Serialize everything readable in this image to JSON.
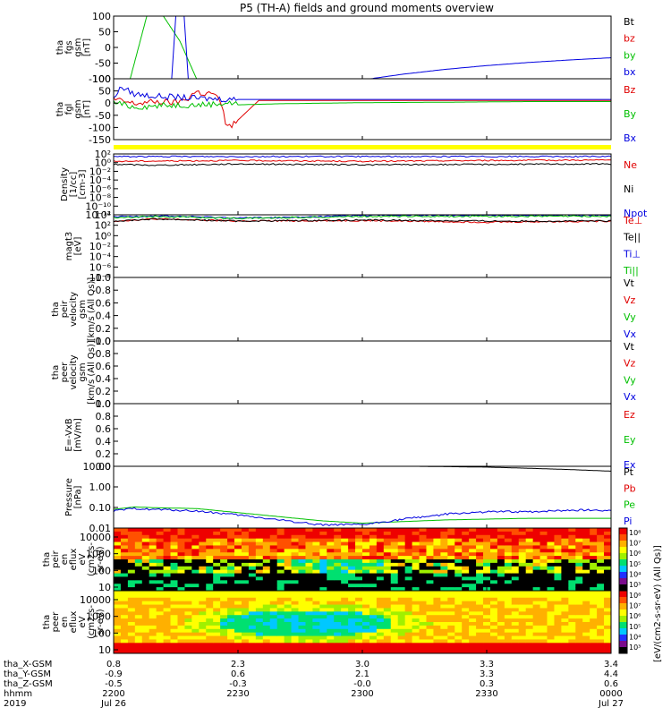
{
  "title": "P5 (TH-A) fields and ground moments overview",
  "colors": {
    "black": "#000000",
    "red": "#e00000",
    "green": "#00c000",
    "blue": "#0000e0",
    "yellow": "#ffff00"
  },
  "panels": [
    {
      "id": "fgs",
      "ylabel": [
        "tha",
        "fgs",
        "gsm",
        "[nT]"
      ],
      "ticks": [
        "100",
        "50",
        "0",
        "-50",
        "-100"
      ],
      "legend": [
        {
          "text": "Bt",
          "color": "black"
        },
        {
          "text": "bz",
          "color": "red"
        },
        {
          "text": "by",
          "color": "green"
        },
        {
          "text": "bx",
          "color": "blue"
        }
      ]
    },
    {
      "id": "fgl",
      "ylabel": [
        "tha",
        "fgl",
        "gsm",
        "[nT]"
      ],
      "ticks": [
        "100",
        "50",
        "0",
        "-50",
        "-100",
        "-150"
      ],
      "legend": [
        {
          "text": "Bz",
          "color": "red"
        },
        {
          "text": "By",
          "color": "green"
        },
        {
          "text": "Bx",
          "color": "blue"
        }
      ]
    },
    {
      "id": "density",
      "ylabel": [
        "Density",
        "[1/cc]",
        "[cm-3]"
      ],
      "ticks": [
        "10²",
        "10⁰",
        "10⁻²",
        "10⁻⁴",
        "10⁻⁶",
        "10⁻⁸",
        "10⁻¹⁰",
        "10⁻¹²"
      ],
      "legend": [
        {
          "text": "Ne",
          "color": "red"
        },
        {
          "text": "Ni",
          "color": "black"
        },
        {
          "text": "Npot",
          "color": "blue"
        }
      ]
    },
    {
      "id": "temp",
      "ylabel": [
        "magt3",
        "[eV]"
      ],
      "ticks": [
        "10⁴",
        "10²",
        "10⁰",
        "10⁻²",
        "10⁻⁴",
        "10⁻⁶",
        "10⁻⁸"
      ],
      "legend": [
        {
          "text": "Te⊥",
          "color": "red"
        },
        {
          "text": "Te||",
          "color": "black"
        },
        {
          "text": "Ti⊥",
          "color": "blue"
        },
        {
          "text": "Ti||",
          "color": "green"
        }
      ]
    },
    {
      "id": "peir_vel",
      "ylabel": [
        "tha",
        "peir",
        "velocity",
        "gsm",
        "[km/s (All Qs)]"
      ],
      "ticks": [
        "1.0",
        "0.8",
        "0.6",
        "0.4",
        "0.2",
        "0.0"
      ],
      "legend": [
        {
          "text": "Vt",
          "color": "black"
        },
        {
          "text": "Vz",
          "color": "red"
        },
        {
          "text": "Vy",
          "color": "green"
        },
        {
          "text": "Vx",
          "color": "blue"
        }
      ]
    },
    {
      "id": "peer_vel",
      "ylabel": [
        "tha",
        "peer",
        "velocity",
        "gsm",
        "[km/s (All Qs)]"
      ],
      "ticks": [
        "1.0",
        "0.8",
        "0.6",
        "0.4",
        "0.2",
        "0.0"
      ],
      "legend": [
        {
          "text": "Vt",
          "color": "black"
        },
        {
          "text": "Vz",
          "color": "red"
        },
        {
          "text": "Vy",
          "color": "green"
        },
        {
          "text": "Vx",
          "color": "blue"
        }
      ]
    },
    {
      "id": "efield",
      "ylabel": [
        "E=-VxB",
        "[mV/m]"
      ],
      "ticks": [
        "1.0",
        "0.8",
        "0.6",
        "0.4",
        "0.2",
        "0.0"
      ],
      "legend": [
        {
          "text": "Ez",
          "color": "red"
        },
        {
          "text": "Ey",
          "color": "green"
        },
        {
          "text": "Ex",
          "color": "blue"
        }
      ]
    },
    {
      "id": "pressure",
      "ylabel": [
        "Pressure",
        "[nPa]"
      ],
      "ticks": [
        "10.00",
        "1.00",
        "0.10",
        "0.01"
      ],
      "legend": [
        {
          "text": "Pt",
          "color": "black"
        },
        {
          "text": "Pb",
          "color": "red"
        },
        {
          "text": "Pe",
          "color": "green"
        },
        {
          "text": "Pi",
          "color": "blue"
        }
      ]
    },
    {
      "id": "peir_spec",
      "ylabel": [
        "tha",
        "peir",
        "en",
        "eflux",
        "eV",
        "(cm2-s-",
        "sr-eV)"
      ],
      "ticks": [
        "10000",
        "1000",
        "100",
        "10"
      ],
      "colorbar_ticks": [
        "10⁸",
        "10⁷",
        "10⁶",
        "10⁵",
        "10⁴",
        "10³"
      ],
      "colorbar_label": "[eV/(cm2-s-sr-eV) (All Qs)]"
    },
    {
      "id": "peer_spec",
      "ylabel": [
        "tha",
        "peer",
        "en",
        "eflux",
        "eV",
        "(cm2-s-",
        "sr-eV)"
      ],
      "ticks": [
        "10000",
        "1000",
        "100",
        "10"
      ],
      "colorbar_ticks": [
        "10⁸",
        "10⁷",
        "10⁶",
        "10⁵",
        "10⁴",
        "10³"
      ],
      "colorbar_label": "[eV/(cm2-s-sr-eV)]"
    }
  ],
  "xaxis": {
    "rows": [
      {
        "label": "tha_X-GSM",
        "values": [
          "0.8",
          "2.3",
          "3.0",
          "3.3",
          "3.4"
        ]
      },
      {
        "label": "tha_Y-GSM",
        "values": [
          "-0.9",
          "0.6",
          "2.1",
          "3.3",
          "4.4"
        ]
      },
      {
        "label": "tha_Z-GSM",
        "values": [
          "-0.5",
          "-0.3",
          "-0.0",
          "0.3",
          "0.6"
        ]
      },
      {
        "label": "hhmm",
        "values": [
          "2200",
          "2230",
          "2300",
          "2330",
          "0000"
        ]
      },
      {
        "label": "2019",
        "values": [
          "Jul 26",
          "",
          "",
          "",
          "Jul 27"
        ]
      }
    ]
  },
  "chart_data": {
    "type": "line",
    "title": "P5 (TH-A) fields and ground moments overview",
    "x_hhmm": [
      "2200",
      "2230",
      "2300",
      "2330",
      "0000"
    ],
    "panels": [
      {
        "name": "tha fgs gsm [nT]",
        "ylim": [
          -100,
          100
        ],
        "series": [
          {
            "name": "by",
            "color": "green",
            "x": [
              0,
              4,
              8,
              12,
              16,
              20
            ],
            "values": [
              -100,
              -100,
              100,
              100,
              20,
              -100
            ]
          },
          {
            "name": "bx",
            "color": "blue",
            "x": [
              0,
              14,
              15,
              16,
              17,
              18,
              62,
              70,
              80,
              90,
              100,
              110,
              120
            ],
            "values": [
              -100,
              -100,
              100,
              100,
              100,
              -100,
              -100,
              -85,
              -70,
              -58,
              -48,
              -40,
              -33
            ]
          }
        ]
      },
      {
        "name": "tha fgl gsm [nT]",
        "ylim": [
          -180,
          100
        ],
        "series": [
          {
            "name": "Bz",
            "color": "red",
            "x": [
              0,
              5,
              10,
              15,
              18,
              19,
              20,
              22,
              24,
              25,
              26,
              27,
              28,
              30,
              35,
              60,
              90,
              120
            ],
            "values": [
              5,
              -15,
              -5,
              -10,
              10,
              30,
              40,
              30,
              35,
              10,
              -20,
              -100,
              -120,
              -90,
              0,
              0,
              0,
              0
            ]
          },
          {
            "name": "By",
            "color": "green",
            "x": [
              0,
              5,
              10,
              15,
              20,
              25,
              28,
              30,
              40,
              60,
              80,
              100,
              120
            ],
            "values": [
              -10,
              -30,
              -25,
              -20,
              -20,
              -15,
              -10,
              -20,
              -15,
              -10,
              -8,
              -5,
              -5
            ]
          },
          {
            "name": "Bx",
            "color": "blue",
            "x": [
              0,
              2,
              5,
              10,
              15,
              20,
              30,
              60,
              90,
              120
            ],
            "values": [
              20,
              60,
              30,
              20,
              15,
              10,
              5,
              5,
              5,
              5
            ]
          }
        ]
      },
      {
        "name": "Density [1/cc] [cm-3]",
        "ylim": [
          -12,
          2
        ],
        "yscale": "log10 exponent",
        "series": [
          {
            "name": "Ne",
            "color": "red",
            "x": [
              0,
              30,
              60,
              90,
              120
            ],
            "values": [
              0.3,
              0.5,
              0.3,
              0.5,
              0.6
            ]
          },
          {
            "name": "Ni",
            "color": "black",
            "x": [
              0,
              10,
              30,
              60,
              90,
              120
            ],
            "values": [
              -0.4,
              -0.6,
              -0.3,
              -0.5,
              -0.4,
              -0.3
            ]
          },
          {
            "name": "Npot",
            "color": "blue",
            "x": [
              0,
              30,
              60,
              90,
              120
            ],
            "values": [
              1.4,
              1.4,
              1.4,
              1.4,
              1.4
            ]
          }
        ]
      },
      {
        "name": "magt3 [eV]",
        "ylim": [
          -8,
          4
        ],
        "yscale": "log10 exponent",
        "series": [
          {
            "name": "Te⊥",
            "color": "red",
            "x": [
              0,
              10,
              30,
              60,
              90,
              120
            ],
            "values": [
              2.8,
              3.2,
              2.8,
              2.9,
              2.6,
              2.8
            ]
          },
          {
            "name": "Te||",
            "color": "black",
            "x": [
              0,
              10,
              30,
              60,
              90,
              120
            ],
            "values": [
              2.8,
              3.2,
              2.8,
              3.0,
              2.8,
              2.8
            ]
          },
          {
            "name": "Ti⊥",
            "color": "blue",
            "x": [
              0,
              10,
              30,
              45,
              60,
              90,
              120
            ],
            "values": [
              3.6,
              3.8,
              3.4,
              3.5,
              3.9,
              3.9,
              3.9
            ]
          },
          {
            "name": "Ti||",
            "color": "green",
            "x": [
              0,
              10,
              30,
              60,
              90,
              120
            ],
            "values": [
              3.5,
              3.7,
              3.3,
              3.7,
              3.7,
              3.7
            ]
          }
        ]
      },
      {
        "name": "tha peir velocity gsm [km/s (All Qs)]",
        "ylim": [
          0,
          1
        ],
        "series": []
      },
      {
        "name": "tha peer velocity gsm [km/s (All Qs)]",
        "ylim": [
          0,
          1
        ],
        "series": []
      },
      {
        "name": "E=-VxB [mV/m]",
        "ylim": [
          0,
          1
        ],
        "series": []
      },
      {
        "name": "Pressure [nPa]",
        "ylim": [
          -2.3,
          1.5
        ],
        "yscale": "log10",
        "series": [
          {
            "name": "Pt",
            "color": "black",
            "x": [
              73,
              90,
              100,
              110,
              120
            ],
            "values": [
              1.5,
              1.45,
              1.38,
              1.3,
              1.2
            ]
          },
          {
            "name": "Pe",
            "color": "green",
            "x": [
              0,
              5,
              10,
              20,
              30,
              40,
              50,
              60,
              70,
              80,
              90,
              100,
              110,
              120
            ],
            "values": [
              -1.15,
              -1.0,
              -1.05,
              -1.1,
              -1.35,
              -1.6,
              -1.85,
              -2.0,
              -1.9,
              -1.8,
              -1.75,
              -1.7,
              -1.7,
              -1.7
            ]
          },
          {
            "name": "Pi",
            "color": "blue",
            "x": [
              0,
              5,
              10,
              20,
              30,
              40,
              50,
              60,
              70,
              80,
              90,
              100,
              110,
              120
            ],
            "values": [
              -1.25,
              -1.1,
              -1.15,
              -1.25,
              -1.5,
              -1.8,
              -2.1,
              -2.1,
              -1.75,
              -1.45,
              -1.3,
              -1.3,
              -1.2,
              -1.2
            ]
          }
        ]
      },
      {
        "name": "tha peir en eflux eV (cm2-s-sr-eV)",
        "type": "heatmap",
        "ylim": [
          10,
          30000
        ],
        "yscale": "log"
      },
      {
        "name": "tha peer en eflux eV (cm2-s-sr-eV)",
        "type": "heatmap",
        "ylim": [
          10,
          30000
        ],
        "yscale": "log"
      }
    ]
  }
}
